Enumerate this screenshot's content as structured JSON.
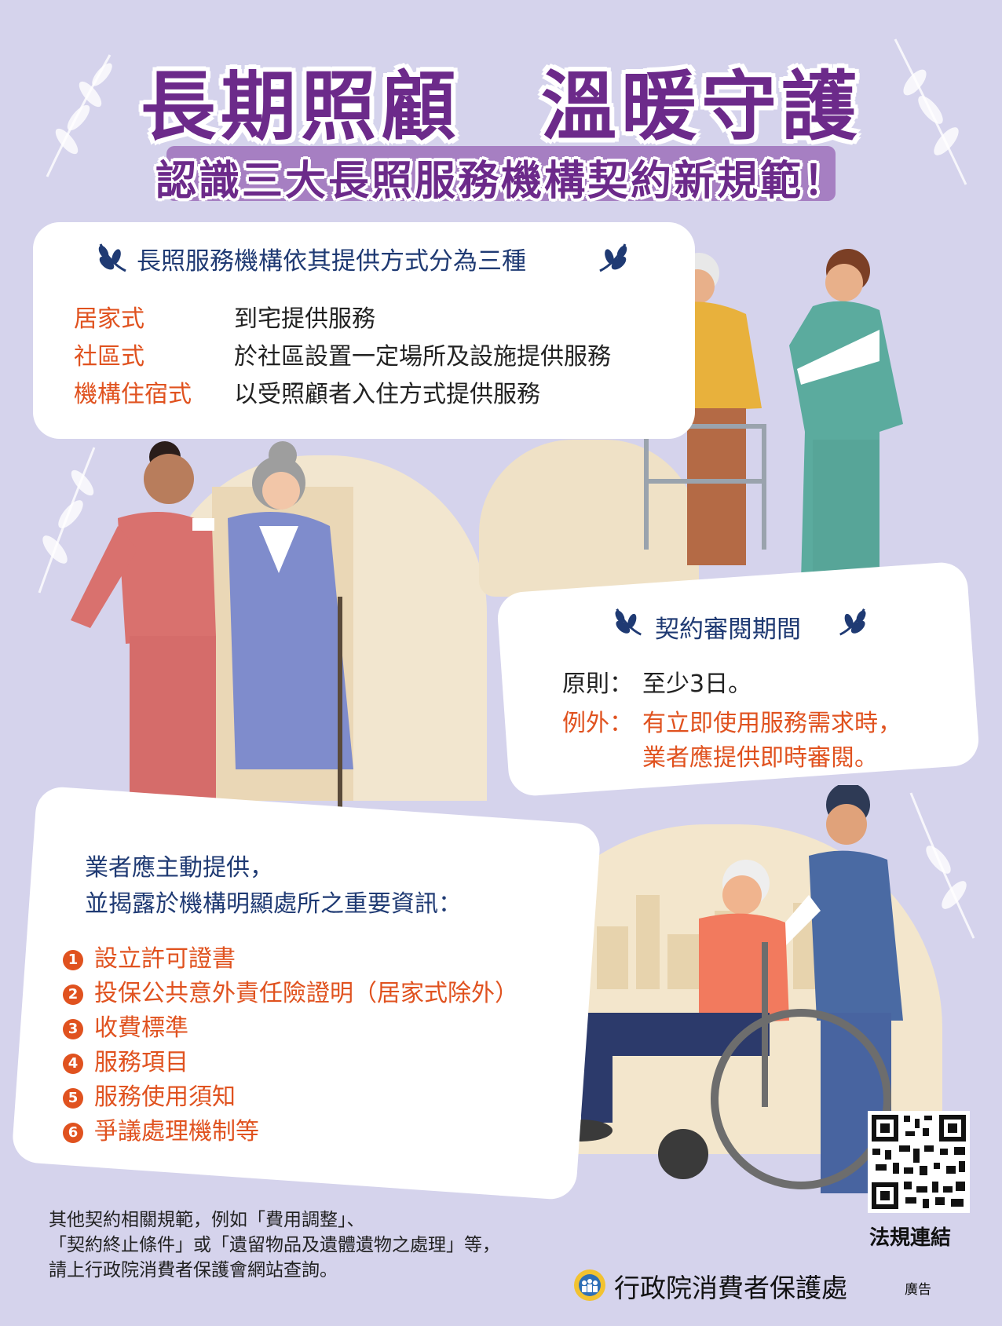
{
  "header": {
    "title": "長期照顧　溫暖守護",
    "subtitle": "認識三大長照服務機構契約新規範！"
  },
  "types_card": {
    "heading": "長照服務機構依其提供方式分為三種",
    "rows": [
      {
        "label": "居家式",
        "value": "到宅提供服務"
      },
      {
        "label": "社區式",
        "value": "於社區設置一定場所及設施提供服務"
      },
      {
        "label": "機構住宿式",
        "value": "以受照顧者入住方式提供服務"
      }
    ]
  },
  "review_card": {
    "heading": "契約審閱期間",
    "principle_label": "原則：",
    "principle_value": "至少3日。",
    "exception_label": "例外：",
    "exception_line1": "有立即使用服務需求時，",
    "exception_line2": "業者應提供即時審閱。"
  },
  "info_card": {
    "intro_line1": "業者應主動提供，",
    "intro_line2": "並揭露於機構明顯處所之重要資訊：",
    "items": [
      {
        "num": "1",
        "text": "設立許可證書"
      },
      {
        "num": "2",
        "text": "投保公共意外責任險證明（居家式除外）"
      },
      {
        "num": "3",
        "text": "收費標準"
      },
      {
        "num": "4",
        "text": "服務項目"
      },
      {
        "num": "5",
        "text": "服務使用須知"
      },
      {
        "num": "6",
        "text": "爭議處理機制等"
      }
    ]
  },
  "footer": {
    "line1": "其他契約相關規範，例如「費用調整」、",
    "line2": "「契約終止條件」或「遺留物品及遺體遺物之處理」等，",
    "line3": "請上行政院消費者保護會網站查詢。",
    "qr_label": "法規連結",
    "org_name": "行政院消費者保護處",
    "ad_label": "廣告"
  },
  "icons": {
    "laurel": "laurel-icon",
    "qr": "qr-code-icon",
    "logo": "consumer-protection-logo-icon"
  },
  "colors": {
    "background": "#d5d3ec",
    "title_purple": "#6c2a8a",
    "heading_navy": "#1f3a73",
    "accent_orange": "#e0521f"
  }
}
